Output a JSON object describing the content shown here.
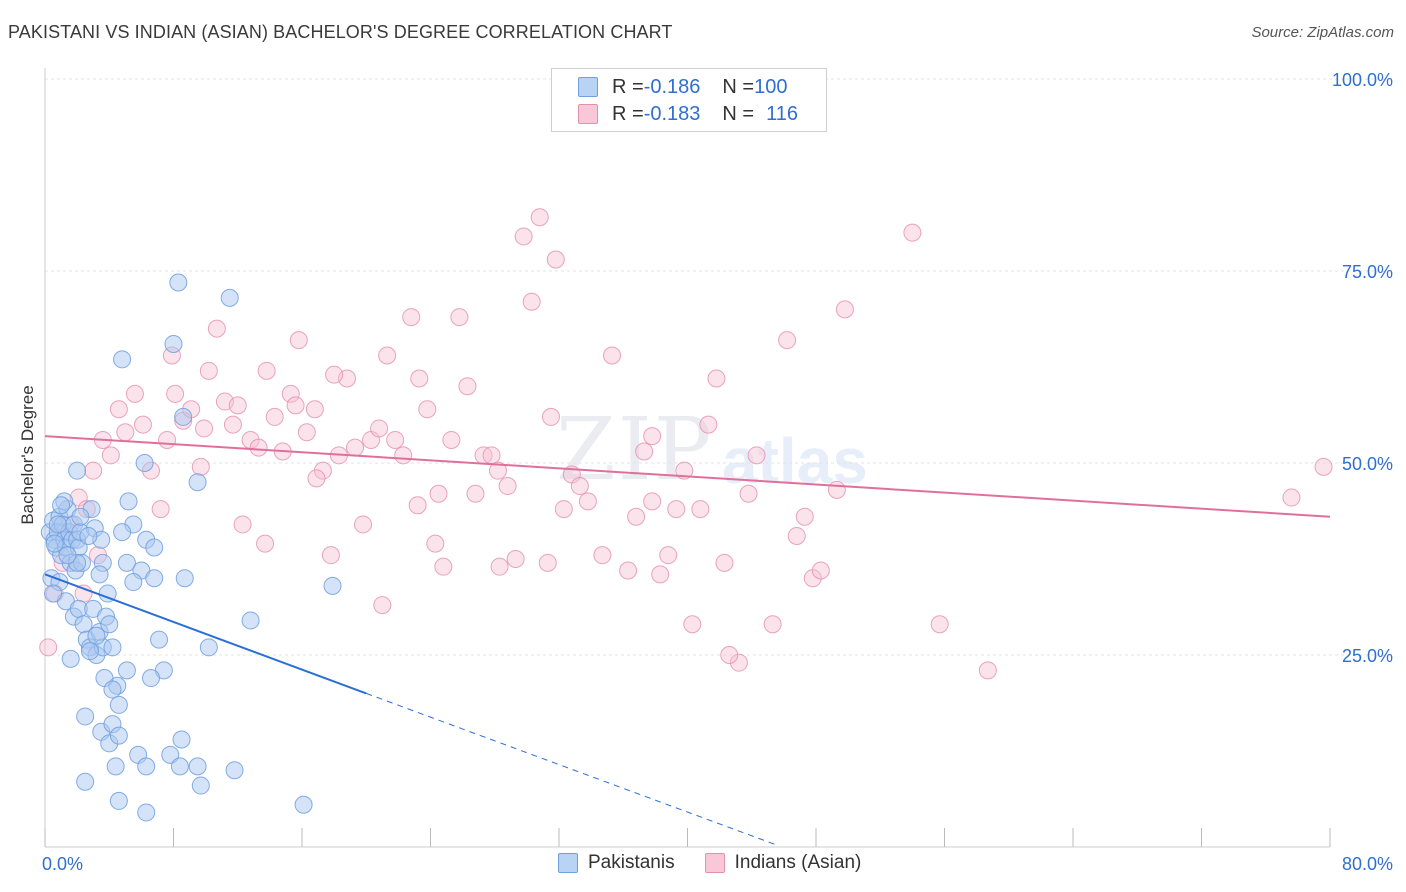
{
  "title": "PAKISTANI VS INDIAN (ASIAN) BACHELOR'S DEGREE CORRELATION CHART",
  "source": "Source: ZipAtlas.com",
  "watermark": {
    "zip": "ZIP",
    "atlas": "atlas"
  },
  "legend": {
    "pakistanis": {
      "r_label": "R = ",
      "r_value": "-0.186",
      "n_label": "N = ",
      "n_value": "100"
    },
    "indians": {
      "r_label": "R = ",
      "r_value": "-0.183",
      "n_label": "N = ",
      "n_value": "116"
    }
  },
  "colors": {
    "blue_fill": "#aac8f0",
    "blue_stroke": "#6f9fe0",
    "blue_line": "#2b6fd6",
    "pink_fill": "#f6c0d2",
    "pink_stroke": "#e58fae",
    "pink_line": "#e0709a",
    "tick_text": "#2f6fd0",
    "grid": "#e3e3e3"
  },
  "chart_data": {
    "type": "scatter",
    "title": "PAKISTANI VS INDIAN (ASIAN) BACHELOR'S DEGREE CORRELATION CHART",
    "xlabel": "",
    "ylabel": "Bachelor's Degree",
    "xlim": [
      0,
      80
    ],
    "ylim": [
      0,
      100
    ],
    "x_tick_labels": [
      "0.0%",
      "80.0%"
    ],
    "y_tick_labels": [
      "25.0%",
      "50.0%",
      "75.0%",
      "100.0%"
    ],
    "y_ticks": [
      25,
      50,
      75,
      100
    ],
    "x_minor_ticks": [
      0,
      8,
      16,
      24,
      32,
      40,
      48,
      56,
      64,
      72,
      80
    ],
    "series": [
      {
        "name": "Pakistanis",
        "trend": {
          "x0": 0,
          "y0": 35.5,
          "x1": 20,
          "y1": 20.0,
          "dashed_to_x": 45.5,
          "dashed_to_y": 0.3
        },
        "points": [
          [
            0.3,
            41
          ],
          [
            0.5,
            42.5
          ],
          [
            0.6,
            40
          ],
          [
            0.7,
            39
          ],
          [
            0.8,
            41
          ],
          [
            0.9,
            43
          ],
          [
            1.0,
            38
          ],
          [
            1.1,
            42
          ],
          [
            1.2,
            40
          ],
          [
            1.3,
            39
          ],
          [
            1.4,
            44
          ],
          [
            1.5,
            41
          ],
          [
            1.6,
            37
          ],
          [
            1.7,
            40
          ],
          [
            1.8,
            42
          ],
          [
            1.9,
            36
          ],
          [
            2.0,
            40
          ],
          [
            2.1,
            39
          ],
          [
            2.2,
            41
          ],
          [
            2.3,
            37
          ],
          [
            0.4,
            35
          ],
          [
            0.9,
            34.5
          ],
          [
            1.3,
            32
          ],
          [
            1.8,
            30
          ],
          [
            2.1,
            31
          ],
          [
            2.4,
            29
          ],
          [
            2.6,
            27
          ],
          [
            2.8,
            26
          ],
          [
            3.0,
            31
          ],
          [
            3.2,
            25
          ],
          [
            3.4,
            28
          ],
          [
            3.6,
            26
          ],
          [
            3.8,
            30
          ],
          [
            4.0,
            29
          ],
          [
            4.2,
            26
          ],
          [
            2.0,
            49
          ],
          [
            2.9,
            44
          ],
          [
            3.1,
            41.5
          ],
          [
            3.6,
            37
          ],
          [
            3.4,
            35.5
          ],
          [
            5.2,
            45
          ],
          [
            5.5,
            42
          ],
          [
            6.3,
            40
          ],
          [
            6.8,
            39
          ],
          [
            5.1,
            37
          ],
          [
            6.0,
            36
          ],
          [
            5.5,
            34.5
          ],
          [
            6.8,
            35
          ],
          [
            4.8,
            63.5
          ],
          [
            8.0,
            65.5
          ],
          [
            8.3,
            73.5
          ],
          [
            11.5,
            71.5
          ],
          [
            8.6,
            56
          ],
          [
            9.5,
            47.5
          ],
          [
            6.2,
            50
          ],
          [
            2.5,
            17
          ],
          [
            3.5,
            15
          ],
          [
            4.2,
            16
          ],
          [
            4.0,
            13.5
          ],
          [
            4.6,
            14.5
          ],
          [
            4.5,
            21
          ],
          [
            3.7,
            22
          ],
          [
            4.2,
            20.5
          ],
          [
            5.1,
            23
          ],
          [
            7.4,
            23
          ],
          [
            4.6,
            18.5
          ],
          [
            4.4,
            10.5
          ],
          [
            5.8,
            12
          ],
          [
            6.3,
            10.5
          ],
          [
            7.8,
            12
          ],
          [
            8.5,
            14
          ],
          [
            8.4,
            10.5
          ],
          [
            9.5,
            10.5
          ],
          [
            11.8,
            10
          ],
          [
            9.7,
            8
          ],
          [
            2.5,
            8.5
          ],
          [
            4.6,
            6
          ],
          [
            6.3,
            4.5
          ],
          [
            16.1,
            5.5
          ],
          [
            12.8,
            29.5
          ],
          [
            17.9,
            34
          ],
          [
            8.7,
            35
          ],
          [
            2.0,
            37
          ],
          [
            3.5,
            40
          ],
          [
            1.2,
            45
          ],
          [
            0.6,
            39.5
          ],
          [
            2.7,
            40.5
          ],
          [
            3.2,
            27.5
          ],
          [
            1.6,
            24.5
          ],
          [
            2.8,
            25.5
          ],
          [
            0.8,
            42
          ],
          [
            1.4,
            38
          ],
          [
            2.2,
            43
          ],
          [
            0.5,
            33
          ],
          [
            4.8,
            41
          ],
          [
            1.0,
            44.5
          ],
          [
            3.9,
            33
          ],
          [
            6.6,
            22
          ],
          [
            7.1,
            27
          ],
          [
            10.2,
            26
          ]
        ]
      },
      {
        "name": "Indians (Asian)",
        "trend": {
          "x0": 0,
          "y0": 53.5,
          "x1": 80,
          "y1": 43.0
        },
        "points": [
          [
            0.2,
            26
          ],
          [
            0.6,
            33
          ],
          [
            1.1,
            37
          ],
          [
            1.6,
            42
          ],
          [
            2.1,
            45.5
          ],
          [
            2.6,
            44
          ],
          [
            3.0,
            49
          ],
          [
            3.6,
            53
          ],
          [
            4.1,
            51
          ],
          [
            4.6,
            57
          ],
          [
            5.0,
            54
          ],
          [
            5.6,
            59
          ],
          [
            6.1,
            55
          ],
          [
            6.6,
            49
          ],
          [
            7.2,
            44
          ],
          [
            7.6,
            53
          ],
          [
            8.1,
            59
          ],
          [
            8.6,
            55.5
          ],
          [
            9.1,
            57
          ],
          [
            9.7,
            49.5
          ],
          [
            10.2,
            62
          ],
          [
            10.7,
            67.5
          ],
          [
            11.2,
            58
          ],
          [
            11.7,
            55
          ],
          [
            12.3,
            42
          ],
          [
            12.8,
            53
          ],
          [
            13.3,
            52
          ],
          [
            13.8,
            62
          ],
          [
            14.3,
            56
          ],
          [
            14.8,
            51.5
          ],
          [
            15.3,
            59
          ],
          [
            15.8,
            66
          ],
          [
            16.3,
            54
          ],
          [
            16.8,
            57
          ],
          [
            17.3,
            49
          ],
          [
            17.8,
            38
          ],
          [
            18.3,
            51
          ],
          [
            18.8,
            61
          ],
          [
            19.3,
            52
          ],
          [
            19.8,
            42
          ],
          [
            20.3,
            53
          ],
          [
            20.8,
            54.5
          ],
          [
            21.3,
            64
          ],
          [
            21.8,
            53
          ],
          [
            22.3,
            51
          ],
          [
            22.8,
            69
          ],
          [
            23.3,
            61
          ],
          [
            23.8,
            57
          ],
          [
            24.3,
            39.5
          ],
          [
            24.8,
            36.5
          ],
          [
            25.3,
            53
          ],
          [
            25.8,
            69
          ],
          [
            26.3,
            60
          ],
          [
            26.8,
            46
          ],
          [
            27.3,
            51
          ],
          [
            27.8,
            51
          ],
          [
            28.3,
            36.5
          ],
          [
            28.8,
            47
          ],
          [
            29.3,
            37.5
          ],
          [
            29.8,
            79.5
          ],
          [
            30.3,
            71
          ],
          [
            30.8,
            82
          ],
          [
            31.3,
            37
          ],
          [
            31.8,
            76.5
          ],
          [
            32.3,
            44
          ],
          [
            32.8,
            48.5
          ],
          [
            33.3,
            47
          ],
          [
            33.8,
            45
          ],
          [
            35.3,
            64
          ],
          [
            36.3,
            36
          ],
          [
            36.8,
            43
          ],
          [
            37.3,
            51.5
          ],
          [
            37.8,
            45
          ],
          [
            38.3,
            35.5
          ],
          [
            38.8,
            38
          ],
          [
            39.3,
            44
          ],
          [
            39.8,
            49
          ],
          [
            40.3,
            29
          ],
          [
            40.8,
            44
          ],
          [
            41.3,
            55
          ],
          [
            41.8,
            61
          ],
          [
            42.3,
            37
          ],
          [
            43.2,
            24
          ],
          [
            43.8,
            46
          ],
          [
            44.3,
            51
          ],
          [
            45.3,
            29
          ],
          [
            46.2,
            66
          ],
          [
            46.8,
            40.5
          ],
          [
            47.3,
            43
          ],
          [
            47.8,
            35
          ],
          [
            48.3,
            36
          ],
          [
            49.3,
            46.5
          ],
          [
            49.8,
            70
          ],
          [
            54.0,
            80
          ],
          [
            55.7,
            29
          ],
          [
            58.7,
            23
          ],
          [
            77.6,
            45.5
          ],
          [
            79.6,
            49.5
          ],
          [
            1.0,
            41
          ],
          [
            3.3,
            38
          ],
          [
            13.7,
            39.5
          ],
          [
            16.9,
            48
          ],
          [
            18.0,
            61.5
          ],
          [
            24.5,
            46
          ],
          [
            21.0,
            31.5
          ],
          [
            31.5,
            56
          ],
          [
            34.7,
            38
          ],
          [
            42.6,
            25
          ],
          [
            37.8,
            53.5
          ],
          [
            23.2,
            44.5
          ],
          [
            15.6,
            57.5
          ],
          [
            28.2,
            49
          ],
          [
            12.0,
            57.5
          ],
          [
            9.9,
            54.5
          ],
          [
            7.9,
            64
          ],
          [
            2.4,
            33
          ]
        ]
      }
    ]
  },
  "bottom_legend": [
    "Pakistanis",
    "Indians (Asian)"
  ]
}
